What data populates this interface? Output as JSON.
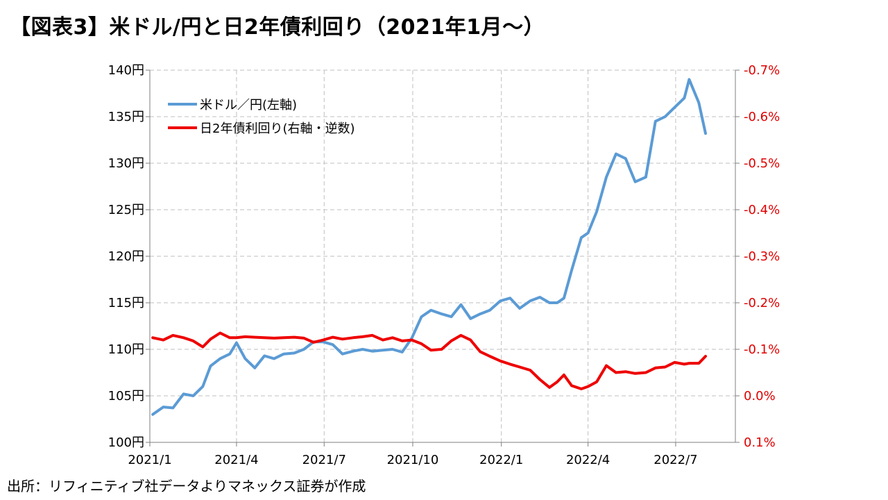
{
  "title": "【図表3】米ドル/円と日2年債利回り（2021年1月～）",
  "source": "出所：リフィニティブ社データよりマネックス証券が作成",
  "colors": {
    "usdjpy": "#5b9bd5",
    "jgb2y": "#ee0000",
    "right_axis": "#e00000",
    "grid": "#bfbfbf"
  },
  "chart_data": {
    "type": "line",
    "x_ticks": [
      "2021/1",
      "2021/4",
      "2021/7",
      "2021/10",
      "2022/1",
      "2022/4",
      "2022/7"
    ],
    "y_left": {
      "ticks": [
        "100円",
        "105円",
        "110円",
        "115円",
        "120円",
        "125円",
        "130円",
        "135円",
        "140円"
      ],
      "range": [
        100,
        140
      ]
    },
    "y_right": {
      "ticks": [
        "0.1%",
        "0.0%",
        "-0.1%",
        "-0.2%",
        "-0.3%",
        "-0.4%",
        "-0.5%",
        "-0.6%",
        "-0.7%"
      ],
      "range": [
        0.1,
        -0.7
      ],
      "inverted": true
    },
    "grid": true,
    "legend_position": "top-left",
    "series": [
      {
        "name": "米ドル／円(左軸)",
        "axis": "left",
        "x": [
          "2021-01-04",
          "2021-01-15",
          "2021-01-25",
          "2021-02-05",
          "2021-02-15",
          "2021-02-25",
          "2021-03-05",
          "2021-03-15",
          "2021-03-25",
          "2021-04-01",
          "2021-04-10",
          "2021-04-20",
          "2021-04-30",
          "2021-05-10",
          "2021-05-20",
          "2021-05-31",
          "2021-06-10",
          "2021-06-20",
          "2021-06-30",
          "2021-07-10",
          "2021-07-20",
          "2021-07-31",
          "2021-08-10",
          "2021-08-20",
          "2021-08-31",
          "2021-09-10",
          "2021-09-20",
          "2021-09-30",
          "2021-10-10",
          "2021-10-20",
          "2021-10-31",
          "2021-11-10",
          "2021-11-20",
          "2021-11-30",
          "2021-12-10",
          "2021-12-20",
          "2021-12-31",
          "2022-01-10",
          "2022-01-20",
          "2022-01-31",
          "2022-02-10",
          "2022-02-20",
          "2022-02-28",
          "2022-03-07",
          "2022-03-15",
          "2022-03-25",
          "2022-04-01",
          "2022-04-10",
          "2022-04-20",
          "2022-04-30",
          "2022-05-10",
          "2022-05-20",
          "2022-05-31",
          "2022-06-10",
          "2022-06-20",
          "2022-06-30",
          "2022-07-10",
          "2022-07-15",
          "2022-07-25",
          "2022-08-01"
        ],
        "values": [
          103.0,
          103.8,
          103.7,
          105.2,
          105.0,
          106.0,
          108.2,
          109.0,
          109.5,
          110.7,
          109.0,
          108.0,
          109.3,
          109.0,
          109.5,
          109.6,
          110.0,
          110.8,
          110.8,
          110.5,
          109.5,
          109.8,
          110.0,
          109.8,
          109.9,
          110.0,
          109.7,
          111.2,
          113.5,
          114.2,
          113.8,
          113.5,
          114.8,
          113.3,
          113.8,
          114.2,
          115.2,
          115.5,
          114.4,
          115.2,
          115.6,
          115.0,
          115.0,
          115.5,
          118.5,
          122.0,
          122.5,
          124.8,
          128.5,
          131.0,
          130.5,
          128.0,
          128.5,
          134.5,
          135.0,
          136.0,
          137.0,
          139.0,
          136.5,
          133.2
        ]
      },
      {
        "name": "日2年債利回り(右軸・逆数)",
        "axis": "right",
        "x": [
          "2021-01-04",
          "2021-01-15",
          "2021-01-25",
          "2021-02-05",
          "2021-02-15",
          "2021-02-25",
          "2021-03-05",
          "2021-03-15",
          "2021-03-25",
          "2021-04-01",
          "2021-04-10",
          "2021-04-20",
          "2021-04-30",
          "2021-05-10",
          "2021-05-20",
          "2021-05-31",
          "2021-06-10",
          "2021-06-20",
          "2021-06-30",
          "2021-07-10",
          "2021-07-20",
          "2021-07-31",
          "2021-08-10",
          "2021-08-20",
          "2021-08-31",
          "2021-09-10",
          "2021-09-20",
          "2021-09-30",
          "2021-10-10",
          "2021-10-20",
          "2021-10-31",
          "2021-11-10",
          "2021-11-20",
          "2021-11-30",
          "2021-12-10",
          "2021-12-20",
          "2021-12-31",
          "2022-01-10",
          "2022-01-20",
          "2022-01-31",
          "2022-02-10",
          "2022-02-20",
          "2022-02-28",
          "2022-03-07",
          "2022-03-15",
          "2022-03-25",
          "2022-04-01",
          "2022-04-10",
          "2022-04-20",
          "2022-04-30",
          "2022-05-10",
          "2022-05-20",
          "2022-05-31",
          "2022-06-10",
          "2022-06-20",
          "2022-06-30",
          "2022-07-10",
          "2022-07-15",
          "2022-07-25",
          "2022-08-01"
        ],
        "values": [
          -0.125,
          -0.12,
          -0.13,
          -0.125,
          -0.118,
          -0.105,
          -0.122,
          -0.135,
          -0.125,
          -0.125,
          -0.127,
          -0.126,
          -0.125,
          -0.124,
          -0.125,
          -0.126,
          -0.124,
          -0.115,
          -0.12,
          -0.126,
          -0.122,
          -0.125,
          -0.127,
          -0.13,
          -0.12,
          -0.125,
          -0.118,
          -0.12,
          -0.112,
          -0.098,
          -0.1,
          -0.118,
          -0.13,
          -0.12,
          -0.095,
          -0.085,
          -0.075,
          -0.068,
          -0.062,
          -0.055,
          -0.035,
          -0.018,
          -0.03,
          -0.045,
          -0.022,
          -0.015,
          -0.02,
          -0.03,
          -0.065,
          -0.05,
          -0.052,
          -0.048,
          -0.05,
          -0.06,
          -0.062,
          -0.072,
          -0.068,
          -0.07,
          -0.07,
          -0.085
        ]
      }
    ]
  }
}
